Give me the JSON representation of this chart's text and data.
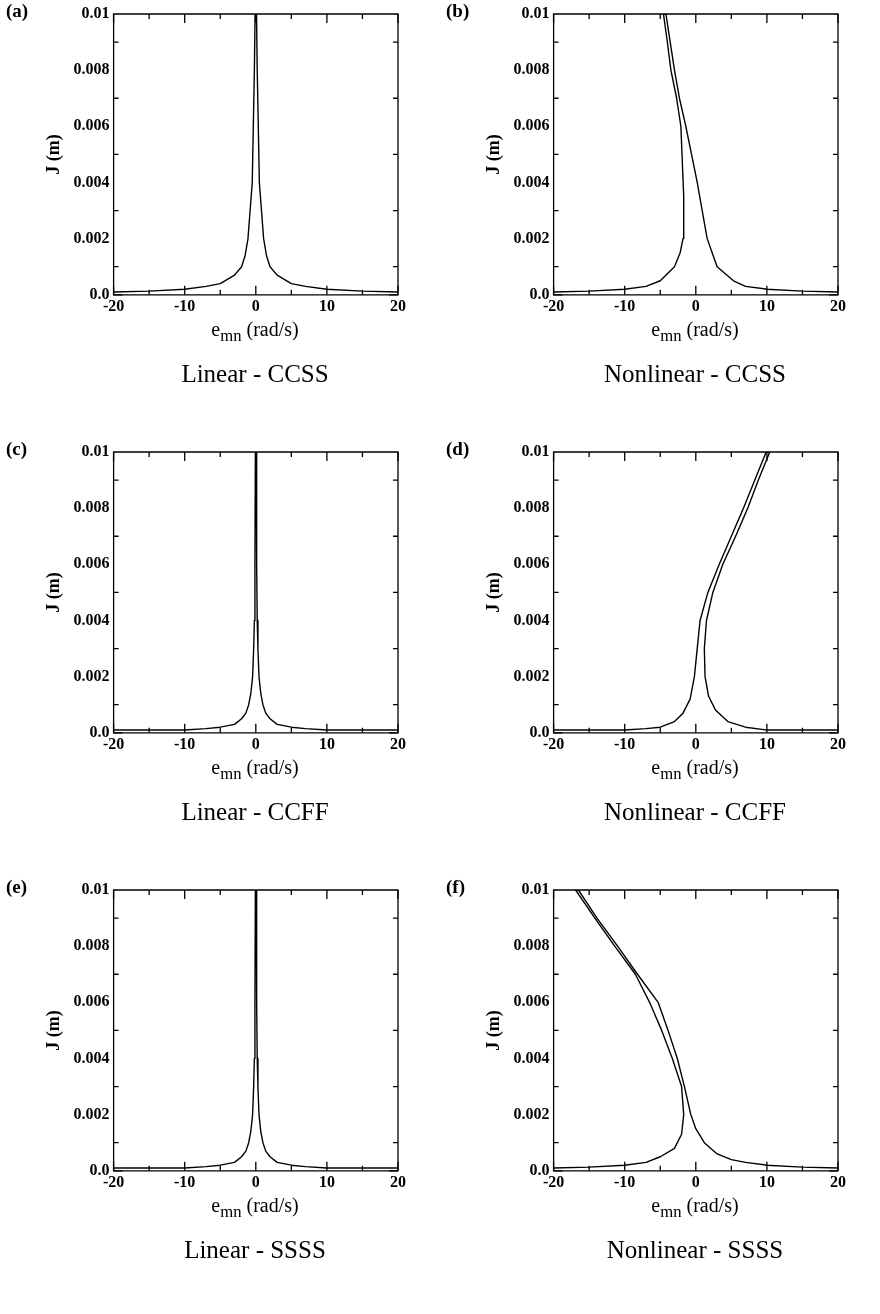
{
  "chart_data": [
    {
      "type": "line",
      "title": "Linear - CCSS",
      "xlabel": "e$_{mn}$ (rad/s)",
      "ylabel": "J (m)",
      "annotations": [
        "(a)"
      ],
      "xlim": [
        -20,
        20
      ],
      "ylim": [
        0,
        0.01
      ],
      "xticks": [
        -20,
        {
          "value": -15,
          "label": null
        },
        -10,
        {
          "value": -5,
          "label": null
        },
        0,
        {
          "value": 5,
          "label": null
        },
        10,
        {
          "value": 15,
          "label": null
        },
        20
      ],
      "yticks": [
        {
          "value": 0,
          "label": "0.0"
        },
        {
          "value": 0.001,
          "label": null
        },
        0.002,
        {
          "value": 0.003,
          "label": null
        },
        0.004,
        {
          "value": 0.005,
          "label": null
        },
        0.006,
        {
          "value": 0.007,
          "label": null
        },
        0.008,
        {
          "value": 0.009,
          "label": null
        },
        0.01
      ],
      "series": [
        {
          "color": "#000000",
          "x": [
            -20,
            -15,
            -10,
            -7,
            -5,
            -3,
            -2,
            -1.5,
            -1.1,
            -0.8,
            -0.5,
            -0.35,
            -0.2,
            -0.1,
            0.1,
            0.2,
            0.35,
            0.5,
            0.8,
            1.1,
            1.5,
            2,
            3,
            5,
            7,
            10,
            15,
            20
          ],
          "values": [
            0.0001,
            0.00013,
            0.0002,
            0.0003,
            0.0004,
            0.0007,
            0.001,
            0.0014,
            0.002,
            0.003,
            0.004,
            0.006,
            0.008,
            0.01,
            0.01,
            0.008,
            0.006,
            0.004,
            0.003,
            0.002,
            0.0014,
            0.001,
            0.0007,
            0.0004,
            0.0003,
            0.0002,
            0.00013,
            0.0001
          ]
        }
      ]
    },
    {
      "type": "line",
      "title": "Nonlinear - CCSS",
      "xlabel": "e$_{mn}$ (rad/s)",
      "ylabel": "J (m)",
      "annotations": [
        "(b)"
      ],
      "xlim": [
        -20,
        20
      ],
      "ylim": [
        0,
        0.01
      ],
      "xticks": [
        -20,
        {
          "value": -15,
          "label": null
        },
        -10,
        {
          "value": -5,
          "label": null
        },
        0,
        {
          "value": 5,
          "label": null
        },
        10,
        {
          "value": 15,
          "label": null
        },
        20
      ],
      "yticks": [
        {
          "value": 0,
          "label": "0.0"
        },
        {
          "value": 0.001,
          "label": null
        },
        0.002,
        {
          "value": 0.003,
          "label": null
        },
        0.004,
        {
          "value": 0.005,
          "label": null
        },
        0.006,
        {
          "value": 0.007,
          "label": null
        },
        0.008,
        {
          "value": 0.009,
          "label": null
        },
        0.01
      ],
      "series": [
        {
          "color": "#000000",
          "x": [
            -20,
            -15,
            -10,
            -7,
            -5,
            -3,
            -2.2,
            -1.8,
            -1.7,
            -2.1,
            -2.7,
            -3.5,
            -4,
            -4.55,
            -4.2,
            -3.6,
            -3,
            -2.3,
            -1.4,
            -0.6,
            0.2,
            0.9,
            1.6,
            3,
            5.3,
            7,
            10,
            15,
            20
          ],
          "values": [
            0.0001,
            0.00013,
            0.0002,
            0.0003,
            0.0005,
            0.001,
            0.0015,
            0.002,
            0.0035,
            0.006,
            0.007,
            0.008,
            0.009,
            0.01,
            0.01,
            0.009,
            0.008,
            0.007,
            0.006,
            0.005,
            0.004,
            0.003,
            0.002,
            0.001,
            0.0005,
            0.0003,
            0.0002,
            0.00013,
            0.0001
          ]
        }
      ]
    },
    {
      "type": "line",
      "title": "Linear - CCFF",
      "xlabel": "e$_{mn}$ (rad/s)",
      "ylabel": "J (m)",
      "annotations": [
        "(c)"
      ],
      "xlim": [
        -20,
        20
      ],
      "ylim": [
        0,
        0.01
      ],
      "xticks": [
        -20,
        {
          "value": -15,
          "label": null
        },
        -10,
        {
          "value": -5,
          "label": null
        },
        0,
        {
          "value": 5,
          "label": null
        },
        10,
        {
          "value": 15,
          "label": null
        },
        20
      ],
      "yticks": [
        {
          "value": 0,
          "label": "0.0"
        },
        {
          "value": 0.001,
          "label": null
        },
        0.002,
        {
          "value": 0.003,
          "label": null
        },
        0.004,
        {
          "value": 0.005,
          "label": null
        },
        0.006,
        {
          "value": 0.007,
          "label": null
        },
        0.008,
        {
          "value": 0.009,
          "label": null
        },
        0.01
      ],
      "series": [
        {
          "color": "#000000",
          "x": [
            -20,
            -15,
            -10,
            -7,
            -5,
            -3,
            -2,
            -1.4,
            -1,
            -0.7,
            -0.45,
            -0.3,
            -0.2,
            -0.12,
            -0.06,
            0.06,
            0.12,
            0.2,
            0.3,
            0.45,
            0.7,
            1,
            1.4,
            2,
            3,
            5,
            7,
            10,
            15,
            20
          ],
          "values": [
            0.0001,
            0.0001,
            0.0001,
            0.00015,
            0.0002,
            0.0003,
            0.0005,
            0.0007,
            0.001,
            0.0014,
            0.002,
            0.003,
            0.004,
            0.006,
            0.01,
            0.01,
            0.006,
            0.004,
            0.003,
            0.002,
            0.0014,
            0.001,
            0.0007,
            0.0005,
            0.0003,
            0.0002,
            0.00015,
            0.0001,
            0.0001,
            0.0001
          ]
        }
      ]
    },
    {
      "type": "line",
      "title": "Nonlinear - CCFF",
      "xlabel": "e$_{mn}$ (rad/s)",
      "ylabel": "J (m)",
      "annotations": [
        "(d)"
      ],
      "xlim": [
        -20,
        20
      ],
      "ylim": [
        0,
        0.01
      ],
      "xticks": [
        -20,
        {
          "value": -15,
          "label": null
        },
        -10,
        {
          "value": -5,
          "label": null
        },
        0,
        {
          "value": 5,
          "label": null
        },
        10,
        {
          "value": 15,
          "label": null
        },
        20
      ],
      "yticks": [
        {
          "value": 0,
          "label": "0.0"
        },
        {
          "value": 0.001,
          "label": null
        },
        0.002,
        {
          "value": 0.003,
          "label": null
        },
        0.004,
        {
          "value": 0.005,
          "label": null
        },
        0.006,
        {
          "value": 0.007,
          "label": null
        },
        0.008,
        {
          "value": 0.009,
          "label": null
        },
        0.01
      ],
      "series": [
        {
          "color": "#000000",
          "x": [
            -20,
            -15,
            -10,
            -7,
            -5,
            -3,
            -1.8,
            -0.8,
            -0.2,
            0.2,
            0.6,
            1.7,
            3.3,
            5,
            6.7,
            8.3,
            9.9,
            10.4,
            8.8,
            7.3,
            5.6,
            3.8,
            2.4,
            1.5,
            1.2,
            1.3,
            1.8,
            2.8,
            4.5,
            7,
            10,
            15,
            20
          ],
          "values": [
            0.0001,
            0.0001,
            0.0001,
            0.00015,
            0.0002,
            0.0004,
            0.0007,
            0.0012,
            0.002,
            0.003,
            0.004,
            0.005,
            0.006,
            0.007,
            0.008,
            0.009,
            0.01,
            0.01,
            0.009,
            0.008,
            0.007,
            0.006,
            0.005,
            0.004,
            0.003,
            0.002,
            0.0013,
            0.0008,
            0.0004,
            0.0002,
            0.0001,
            0.0001,
            0.0001
          ]
        }
      ]
    },
    {
      "type": "line",
      "title": "Linear - SSSS",
      "xlabel": "e$_{mn}$ (rad/s)",
      "ylabel": "J (m)",
      "annotations": [
        "(e)"
      ],
      "xlim": [
        -20,
        20
      ],
      "ylim": [
        0,
        0.01
      ],
      "xticks": [
        -20,
        {
          "value": -15,
          "label": null
        },
        -10,
        {
          "value": -5,
          "label": null
        },
        0,
        {
          "value": 5,
          "label": null
        },
        10,
        {
          "value": 15,
          "label": null
        },
        20
      ],
      "yticks": [
        {
          "value": 0,
          "label": "0.0"
        },
        {
          "value": 0.001,
          "label": null
        },
        0.002,
        {
          "value": 0.003,
          "label": null
        },
        0.004,
        {
          "value": 0.005,
          "label": null
        },
        0.006,
        {
          "value": 0.007,
          "label": null
        },
        0.008,
        {
          "value": 0.009,
          "label": null
        },
        0.01
      ],
      "series": [
        {
          "color": "#000000",
          "x": [
            -20,
            -15,
            -10,
            -7,
            -5,
            -3,
            -2,
            -1.4,
            -1,
            -0.7,
            -0.45,
            -0.3,
            -0.2,
            -0.12,
            -0.06,
            0.06,
            0.12,
            0.2,
            0.3,
            0.45,
            0.7,
            1,
            1.4,
            2,
            3,
            5,
            7,
            10,
            15,
            20
          ],
          "values": [
            0.0001,
            0.0001,
            0.0001,
            0.00015,
            0.0002,
            0.0003,
            0.0005,
            0.0007,
            0.001,
            0.0014,
            0.002,
            0.003,
            0.004,
            0.006,
            0.01,
            0.01,
            0.006,
            0.004,
            0.003,
            0.002,
            0.0014,
            0.001,
            0.0007,
            0.0005,
            0.0003,
            0.0002,
            0.00015,
            0.0001,
            0.0001,
            0.0001
          ]
        }
      ]
    },
    {
      "type": "line",
      "title": "Nonlinear - SSSS",
      "xlabel": "e$_{mn}$ (rad/s)",
      "ylabel": "J (m)",
      "annotations": [
        "(f)"
      ],
      "xlim": [
        -20,
        20
      ],
      "ylim": [
        0,
        0.01
      ],
      "xticks": [
        -20,
        {
          "value": -15,
          "label": null
        },
        -10,
        {
          "value": -5,
          "label": null
        },
        0,
        {
          "value": 5,
          "label": null
        },
        10,
        {
          "value": 15,
          "label": null
        },
        20
      ],
      "yticks": [
        {
          "value": 0,
          "label": "0.0"
        },
        {
          "value": 0.001,
          "label": null
        },
        0.002,
        {
          "value": 0.003,
          "label": null
        },
        0.004,
        {
          "value": 0.005,
          "label": null
        },
        0.006,
        {
          "value": 0.007,
          "label": null
        },
        0.008,
        {
          "value": 0.009,
          "label": null
        },
        0.01
      ],
      "series": [
        {
          "color": "#000000",
          "x": [
            -20,
            -15,
            -10,
            -7,
            -5,
            -3,
            -2,
            -1.7,
            -2,
            -3.3,
            -4.8,
            -6.5,
            -8.5,
            -11.4,
            -14.2,
            -16.9,
            -16.5,
            -13.9,
            -11,
            -8.2,
            -5.3,
            -3.9,
            -2.6,
            -1.6,
            -0.7,
            0,
            1.2,
            3,
            5,
            7,
            10,
            15,
            20
          ],
          "values": [
            0.0001,
            0.00013,
            0.0002,
            0.0003,
            0.0005,
            0.0008,
            0.0013,
            0.002,
            0.003,
            0.004,
            0.005,
            0.006,
            0.007,
            0.008,
            0.009,
            0.01,
            0.01,
            0.009,
            0.008,
            0.007,
            0.006,
            0.005,
            0.004,
            0.003,
            0.002,
            0.0015,
            0.001,
            0.0006,
            0.0004,
            0.0003,
            0.0002,
            0.00013,
            0.0001
          ]
        }
      ]
    }
  ]
}
